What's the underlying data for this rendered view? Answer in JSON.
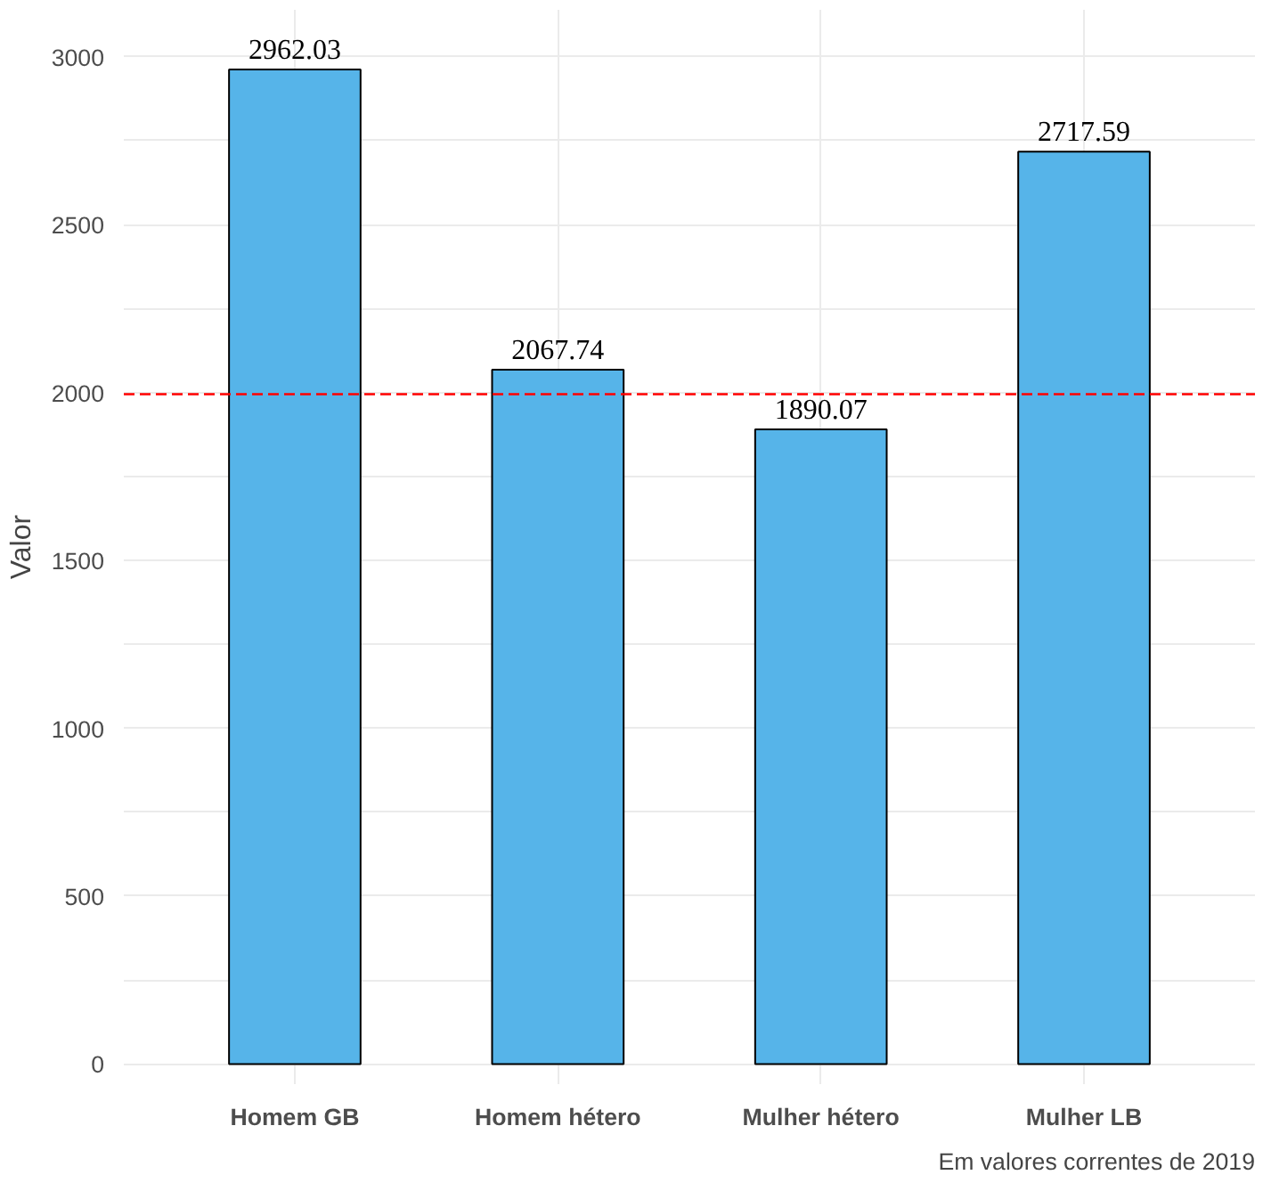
{
  "chart_data": {
    "type": "bar",
    "ylabel": "Valor",
    "categories": [
      "Homem GB",
      "Homem hétero",
      "Mulher hétero",
      "Mulher LB"
    ],
    "values": [
      2962.03,
      2067.74,
      1890.07,
      2717.59
    ],
    "color": "#56b4e9",
    "ylim": [
      -60,
      3140
    ],
    "yticks": [
      0,
      500,
      1000,
      1500,
      2000,
      2500,
      3000
    ],
    "grid": true,
    "data_labels": true,
    "ref_lines": [
      {
        "axis": "y",
        "value": 1995,
        "color": "#ff0000",
        "line_style": "dashed"
      }
    ],
    "annotations": [
      "Em valores correntes de 2019"
    ]
  }
}
